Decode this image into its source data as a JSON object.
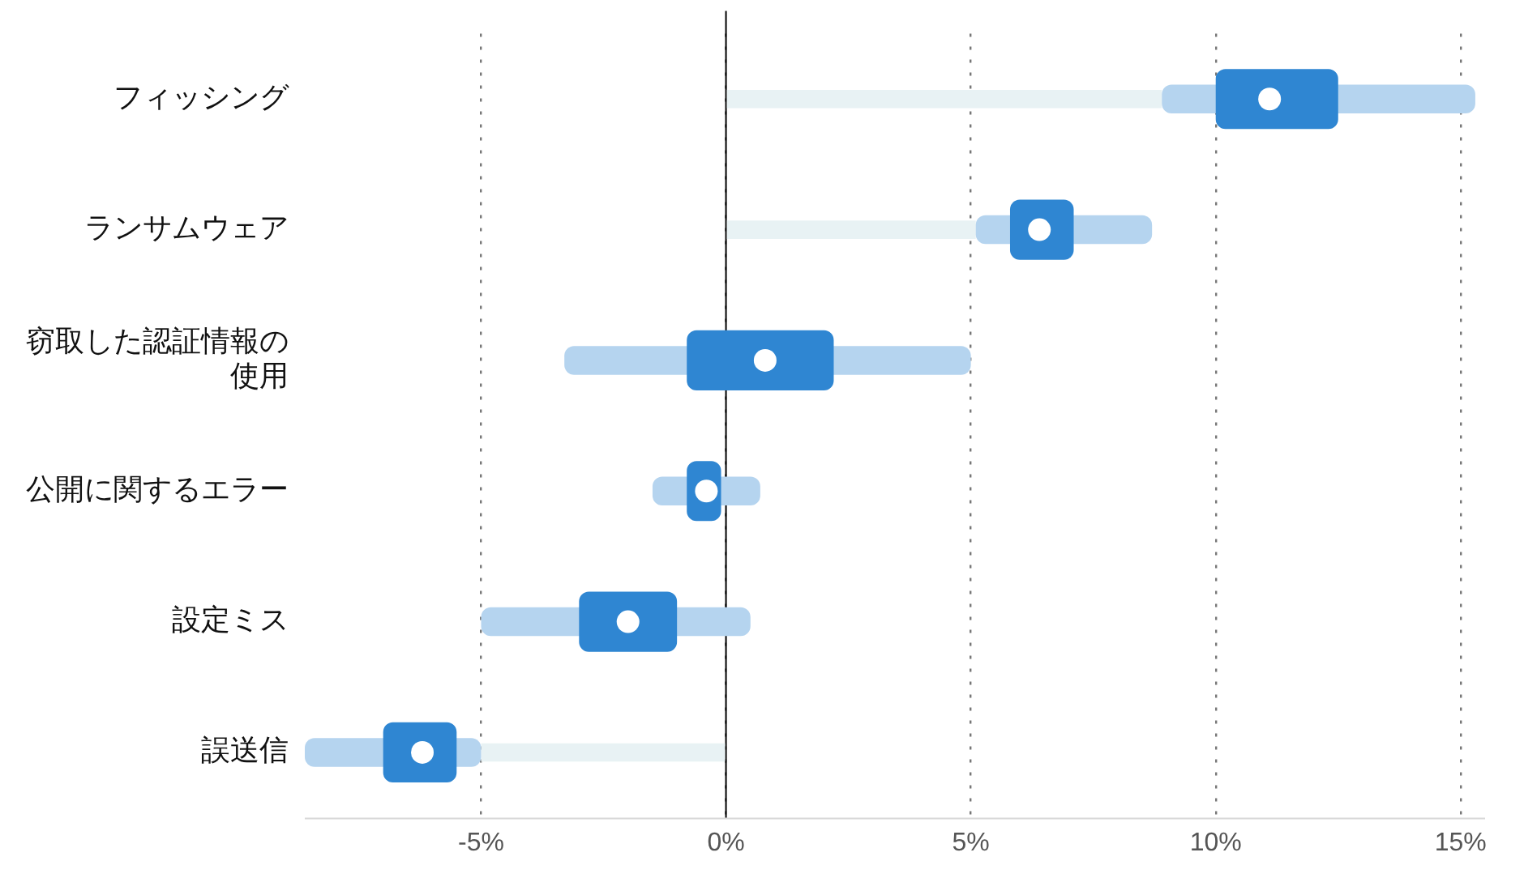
{
  "chart_data": {
    "type": "bar",
    "orientation": "horizontal",
    "categories": [
      "フィッシング",
      "ランサムウェア",
      "窃取した認証情報の使用",
      "公開に関するエラー",
      "設定ミス",
      "誤送信"
    ],
    "series": [
      {
        "type": "bar",
        "color": "#e8f2f4",
        "values": [
          8.9,
          5.1,
          null,
          null,
          null,
          -5.0
        ]
      },
      {
        "type": "bar",
        "color": "#b5d4ef",
        "base": [
          8.9,
          5.1,
          -3.3,
          -1.5,
          -5.0,
          -8.6
        ],
        "values": [
          6.4,
          3.6,
          8.3,
          2.2,
          5.5,
          3.6
        ]
      },
      {
        "type": "bar",
        "color": "#2f86d2",
        "base": [
          10.0,
          5.8,
          -0.8,
          -0.8,
          -3.0,
          -7.0
        ],
        "values": [
          2.5,
          1.3,
          3.0,
          0.7,
          2.0,
          1.5
        ]
      },
      {
        "type": "scatter",
        "color": "#ffffff",
        "values": [
          11.1,
          6.4,
          0.8,
          -0.4,
          -2.0,
          -6.2
        ]
      }
    ],
    "xlim": [
      -8.6,
      15.5
    ],
    "xticks": [
      {
        "value": -5,
        "label": "-5%"
      },
      {
        "value": 0,
        "label": "0%"
      },
      {
        "value": 5,
        "label": "5%"
      },
      {
        "value": 10,
        "label": "10%"
      },
      {
        "value": 15,
        "label": "15%"
      }
    ],
    "grid": "x",
    "legend": false,
    "marker": "circle",
    "ref_lines": [
      {
        "axis": "x",
        "value": 0,
        "color": "#000000"
      }
    ]
  }
}
